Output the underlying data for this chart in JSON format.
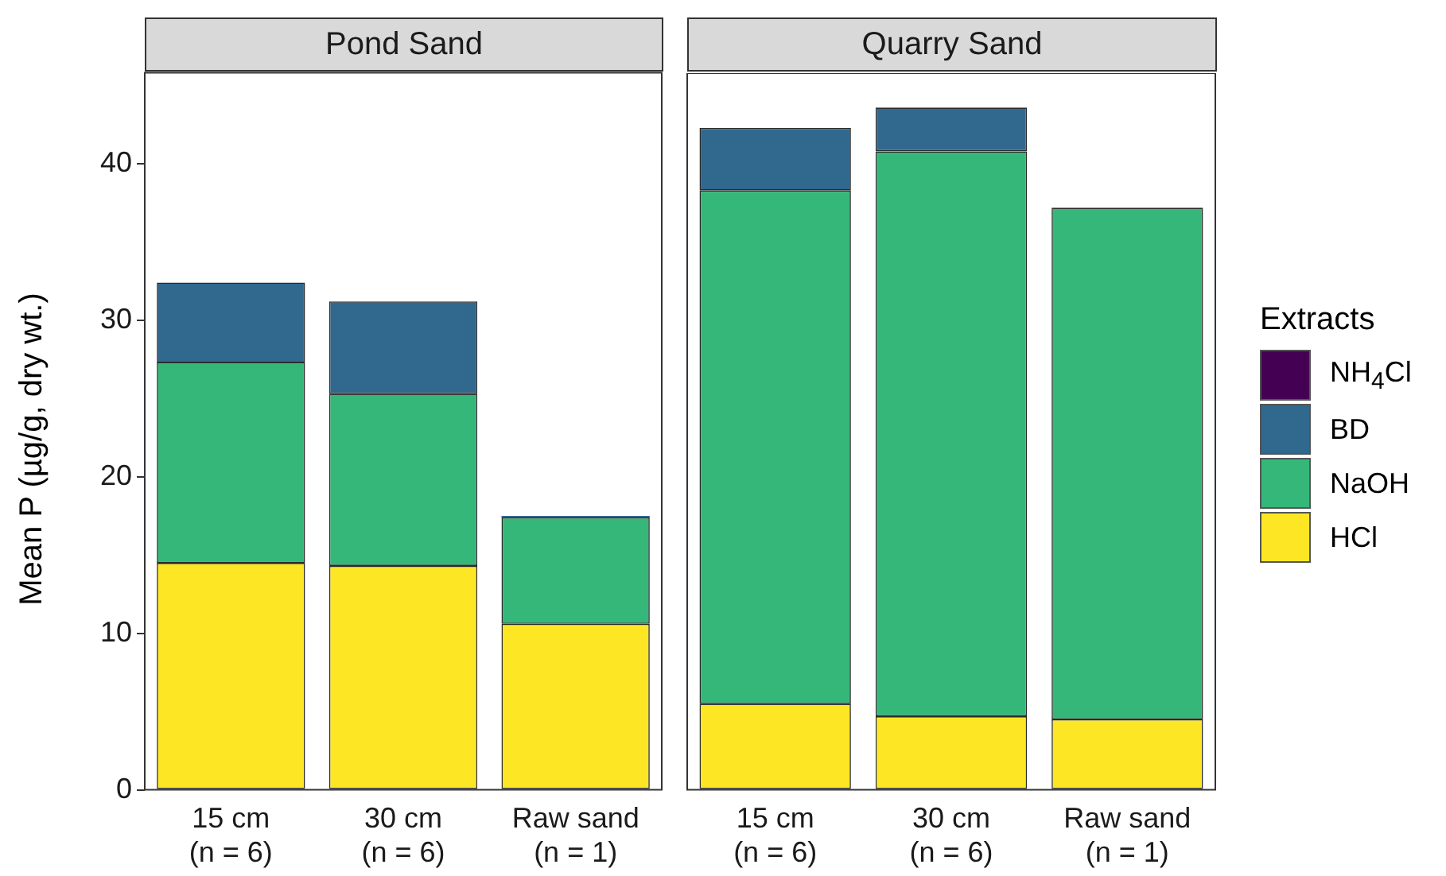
{
  "chart_data": [
    {
      "type": "bar",
      "title": "Pond Sand",
      "ylabel": "Mean P (µg/g, dry wt.)",
      "categories": [
        "15 cm\n(n = 6)",
        "30 cm\n(n = 6)",
        "Raw sand\n(n = 1)"
      ],
      "stacked": true,
      "ylim": [
        0,
        45.8
      ],
      "yticks": [
        0,
        10,
        20,
        30,
        40
      ],
      "grid": false,
      "legend": "right",
      "legend_title": "Extracts",
      "series": [
        {
          "name": "HCl",
          "color": "#fde725",
          "values": [
            14.5,
            14.3,
            10.6
          ]
        },
        {
          "name": "NaOH",
          "color": "#35b779",
          "values": [
            12.8,
            11.0,
            6.8
          ]
        },
        {
          "name": "BD",
          "color": "#31688e",
          "values": [
            5.1,
            5.9,
            0.1
          ]
        },
        {
          "name": "NH$_{4}$Cl",
          "color": "#440154",
          "values": [
            null,
            null,
            null
          ]
        }
      ]
    },
    {
      "type": "bar",
      "title": "Quarry Sand",
      "categories": [
        "15 cm\n(n = 6)",
        "30 cm\n(n = 6)",
        "Raw sand\n(n = 1)"
      ],
      "stacked": true,
      "ylim": [
        0,
        45.8
      ],
      "yticks": [
        0,
        10,
        20,
        30,
        40
      ],
      "grid": false,
      "tick_labels": "x",
      "series": [
        {
          "color": "#fde725",
          "values": [
            5.5,
            4.7,
            4.5
          ]
        },
        {
          "color": "#35b779",
          "values": [
            32.8,
            36.1,
            32.7
          ]
        },
        {
          "color": "#31688e",
          "values": [
            4.0,
            2.8,
            null
          ]
        },
        {
          "color": "#440154",
          "values": [
            null,
            null,
            null
          ]
        }
      ]
    }
  ]
}
